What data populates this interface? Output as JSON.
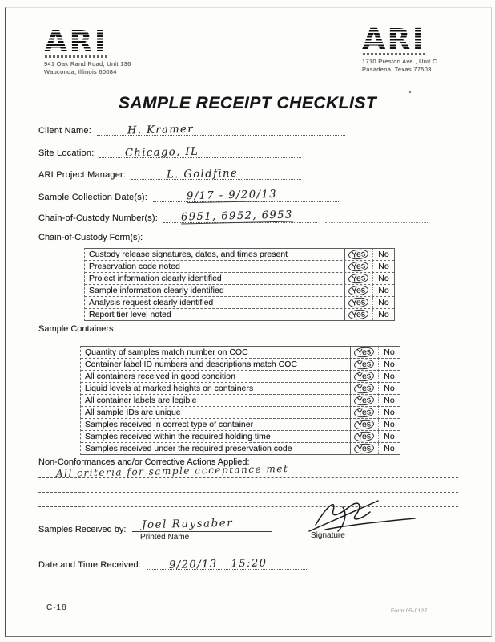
{
  "header": {
    "logo_left": {
      "text": "ARI",
      "address1": "941 Oak Rand Road, Unit 136",
      "address2": "Wauconda, Illinois 60084"
    },
    "logo_right": {
      "text": "ARI",
      "address1": "1710 Preston Ave., Unit C",
      "address2": "Pasadena, Texas 77503"
    }
  },
  "title": "SAMPLE RECEIPT CHECKLIST",
  "fields": {
    "client_name": {
      "label": "Client Name:",
      "value": "H. Kramer"
    },
    "site_location": {
      "label": "Site Location:",
      "value": "Chicago, IL"
    },
    "project_manager": {
      "label": "ARI Project Manager:",
      "value": "L. Goldfine"
    },
    "collection_dates": {
      "label": "Sample Collection Date(s):",
      "value": "9/17 - 9/20/13"
    },
    "coc_numbers": {
      "label": "Chain-of-Custody Number(s):",
      "value": "6951, 6952, 6953"
    }
  },
  "options": {
    "yes": "Yes",
    "no": "No"
  },
  "checklists": [
    {
      "label": "Chain-of-Custody Form(s):",
      "items": [
        {
          "text": "Custody release signatures, dates, and times present",
          "answer": "yes"
        },
        {
          "text": "Preservation code noted",
          "answer": "yes"
        },
        {
          "text": "Project information clearly identified",
          "answer": "yes"
        },
        {
          "text": "Sample information clearly identified",
          "answer": "yes"
        },
        {
          "text": "Analysis request clearly identified",
          "answer": "yes"
        },
        {
          "text": "Report tier level noted",
          "answer": "yes"
        }
      ]
    },
    {
      "label": "Sample Containers:",
      "items": [
        {
          "text": "Quantity of samples match number on COC",
          "answer": "yes"
        },
        {
          "text": "Container label ID numbers and descriptions match COC",
          "answer": "yes"
        },
        {
          "text": "All containers received in good condition",
          "answer": "yes"
        },
        {
          "text": "Liquid levels at marked heights on containers",
          "answer": "yes"
        },
        {
          "text": "All container labels are legible",
          "answer": "yes"
        },
        {
          "text": "All sample IDs are unique",
          "answer": "yes"
        },
        {
          "text": "Samples received in correct type of container",
          "answer": "yes"
        },
        {
          "text": "Samples received within the required holding time",
          "answer": "yes"
        },
        {
          "text": "Samples received under the required preservation code",
          "answer": "yes"
        }
      ]
    }
  ],
  "nonconformance": {
    "label": "Non-Conformances and/or Corrective Actions Applied:",
    "value": "All criteria for sample acceptance met"
  },
  "received": {
    "label": "Samples Received by:",
    "printed_name_value": "Joel Ruysaber",
    "printed_name_label": "Printed Name",
    "signature_label": "Signature"
  },
  "datetime": {
    "label": "Date and Time Received:",
    "value": "9/20/13   15:20"
  },
  "footer": {
    "left": "C-18",
    "right": "Form 05-0127"
  }
}
